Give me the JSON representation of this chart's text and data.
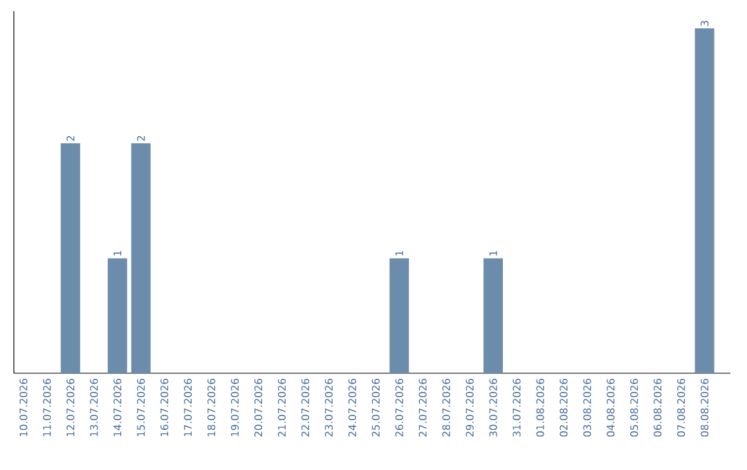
{
  "chart_data": {
    "type": "bar",
    "categories": [
      "10.07.2026",
      "11.07.2026",
      "12.07.2026",
      "13.07.2026",
      "14.07.2026",
      "15.07.2026",
      "16.07.2026",
      "17.07.2026",
      "18.07.2026",
      "19.07.2026",
      "20.07.2026",
      "21.07.2026",
      "22.07.2026",
      "23.07.2026",
      "24.07.2026",
      "25.07.2026",
      "26.07.2026",
      "27.07.2026",
      "28.07.2026",
      "29.07.2026",
      "30.07.2026",
      "31.07.2026",
      "01.08.2026",
      "02.08.2026",
      "03.08.2026",
      "04.08.2026",
      "05.08.2026",
      "06.08.2026",
      "07.08.2026",
      "08.08.2026"
    ],
    "values": [
      0,
      0,
      2,
      0,
      1,
      2,
      0,
      0,
      0,
      0,
      0,
      0,
      0,
      0,
      0,
      0,
      1,
      0,
      0,
      0,
      1,
      0,
      0,
      0,
      0,
      0,
      0,
      0,
      0,
      3
    ],
    "value_labels": [
      null,
      null,
      "2",
      null,
      "1",
      "2",
      null,
      null,
      null,
      null,
      null,
      null,
      null,
      null,
      null,
      null,
      "1",
      null,
      null,
      null,
      "1",
      null,
      null,
      null,
      null,
      null,
      null,
      null,
      null,
      "3"
    ],
    "color": "#6b8cab"
  }
}
